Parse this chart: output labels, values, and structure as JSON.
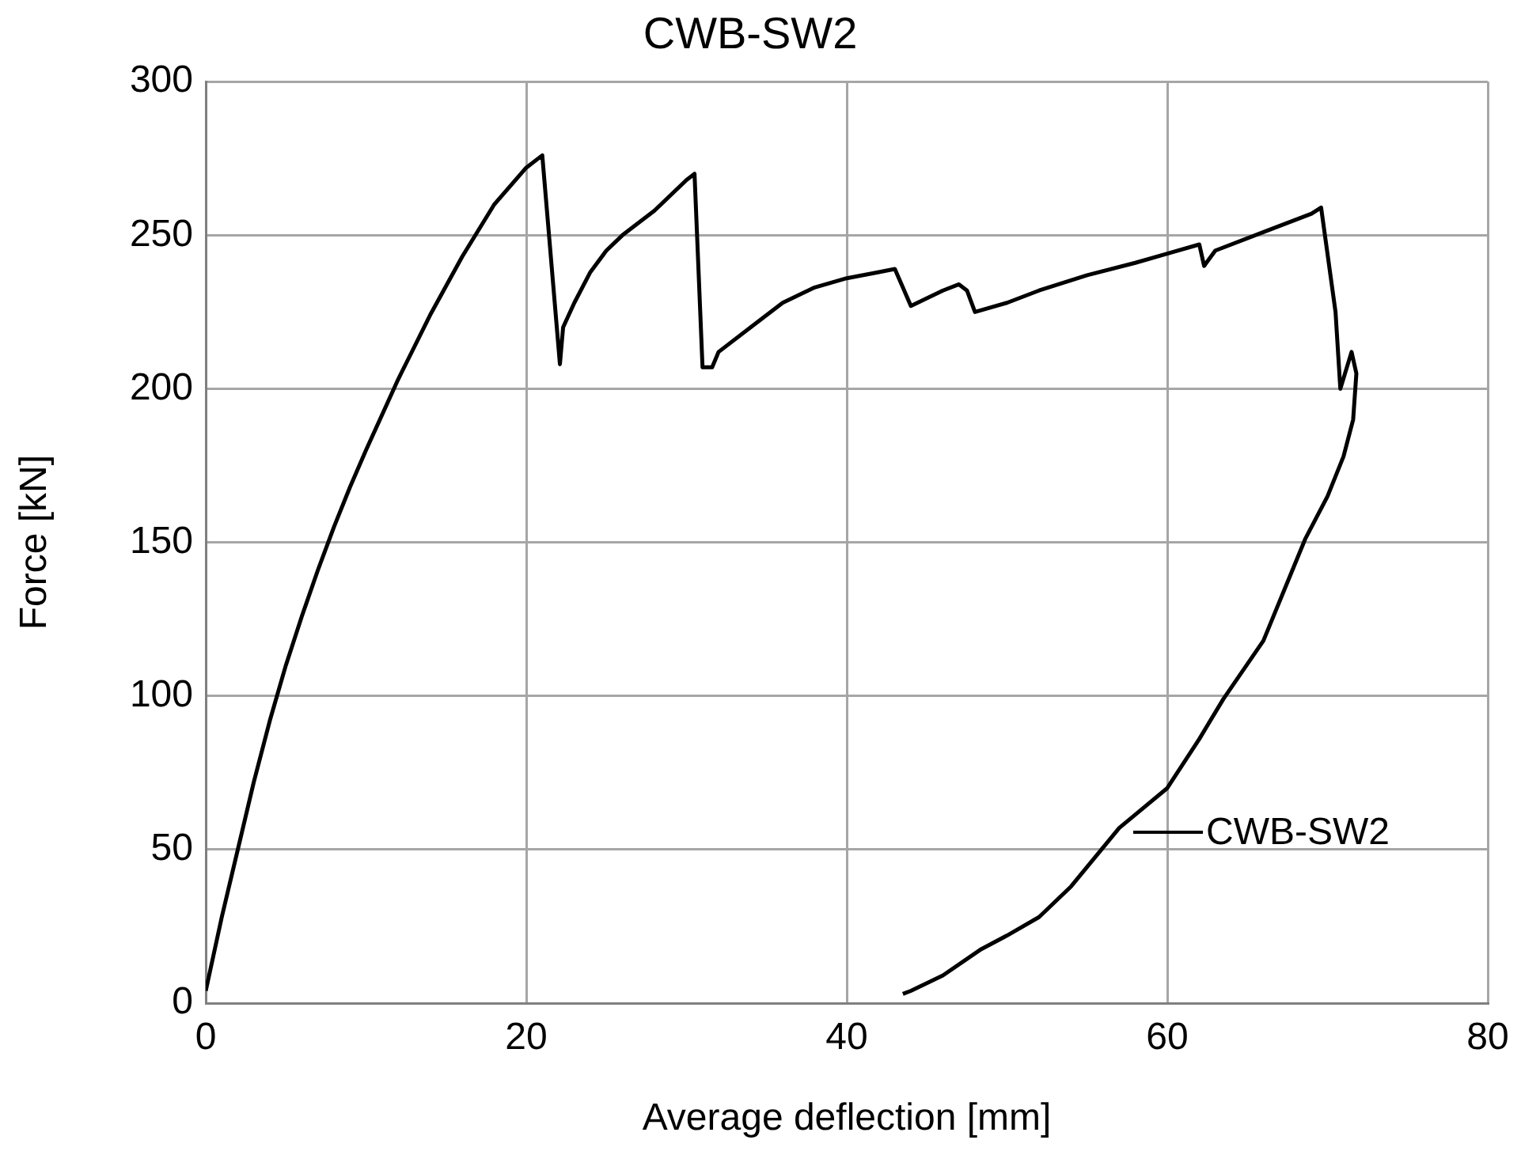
{
  "chart_data": {
    "type": "line",
    "title": "CWB-SW2",
    "xlabel": "Average deflection [mm]",
    "ylabel": "Force [kN]",
    "xlim": [
      0,
      80
    ],
    "xticks": [
      0,
      20,
      40,
      60,
      80
    ],
    "ylim": [
      0,
      300
    ],
    "yticks": [
      0,
      50,
      100,
      150,
      200,
      250,
      300
    ],
    "grid": true,
    "legend": "bottom right",
    "marker": "none",
    "line_style": "solid",
    "series": [
      {
        "name": "CWB-SW2",
        "color": "#000000",
        "x": [
          0,
          1,
          2,
          3,
          4,
          5,
          6,
          7,
          8,
          9,
          10,
          12,
          14,
          16,
          18,
          20,
          21,
          22.1,
          22.3,
          23,
          24,
          25,
          26,
          28,
          30,
          30.5,
          31,
          31.6,
          32,
          34,
          36,
          38,
          40,
          42,
          43,
          43.5,
          44,
          46,
          47,
          47.5,
          48,
          50,
          52,
          55,
          58,
          60,
          62,
          62.3,
          63,
          66,
          69,
          69.6,
          70.5,
          70.8,
          71.5,
          71.8,
          71.6,
          71,
          70,
          68.6,
          66,
          63.5,
          62,
          60,
          57,
          54,
          52,
          50,
          48.4,
          46,
          44,
          43.5
        ],
        "values": [
          4,
          28,
          50,
          72,
          92,
          110,
          126,
          141,
          155,
          168,
          180,
          203,
          224,
          243,
          260,
          272,
          276,
          208,
          220,
          228,
          238,
          245,
          250,
          258,
          268,
          270,
          207,
          207,
          212,
          220,
          228,
          233,
          236,
          238,
          239,
          233,
          227,
          232,
          234,
          232,
          225,
          228,
          232,
          237,
          241,
          244,
          247,
          240,
          245,
          251,
          257,
          259,
          225,
          200,
          212,
          205,
          190,
          178,
          165,
          151,
          118,
          99,
          86,
          70,
          57,
          38,
          28,
          22,
          17.6,
          9,
          4,
          3
        ]
      }
    ]
  }
}
